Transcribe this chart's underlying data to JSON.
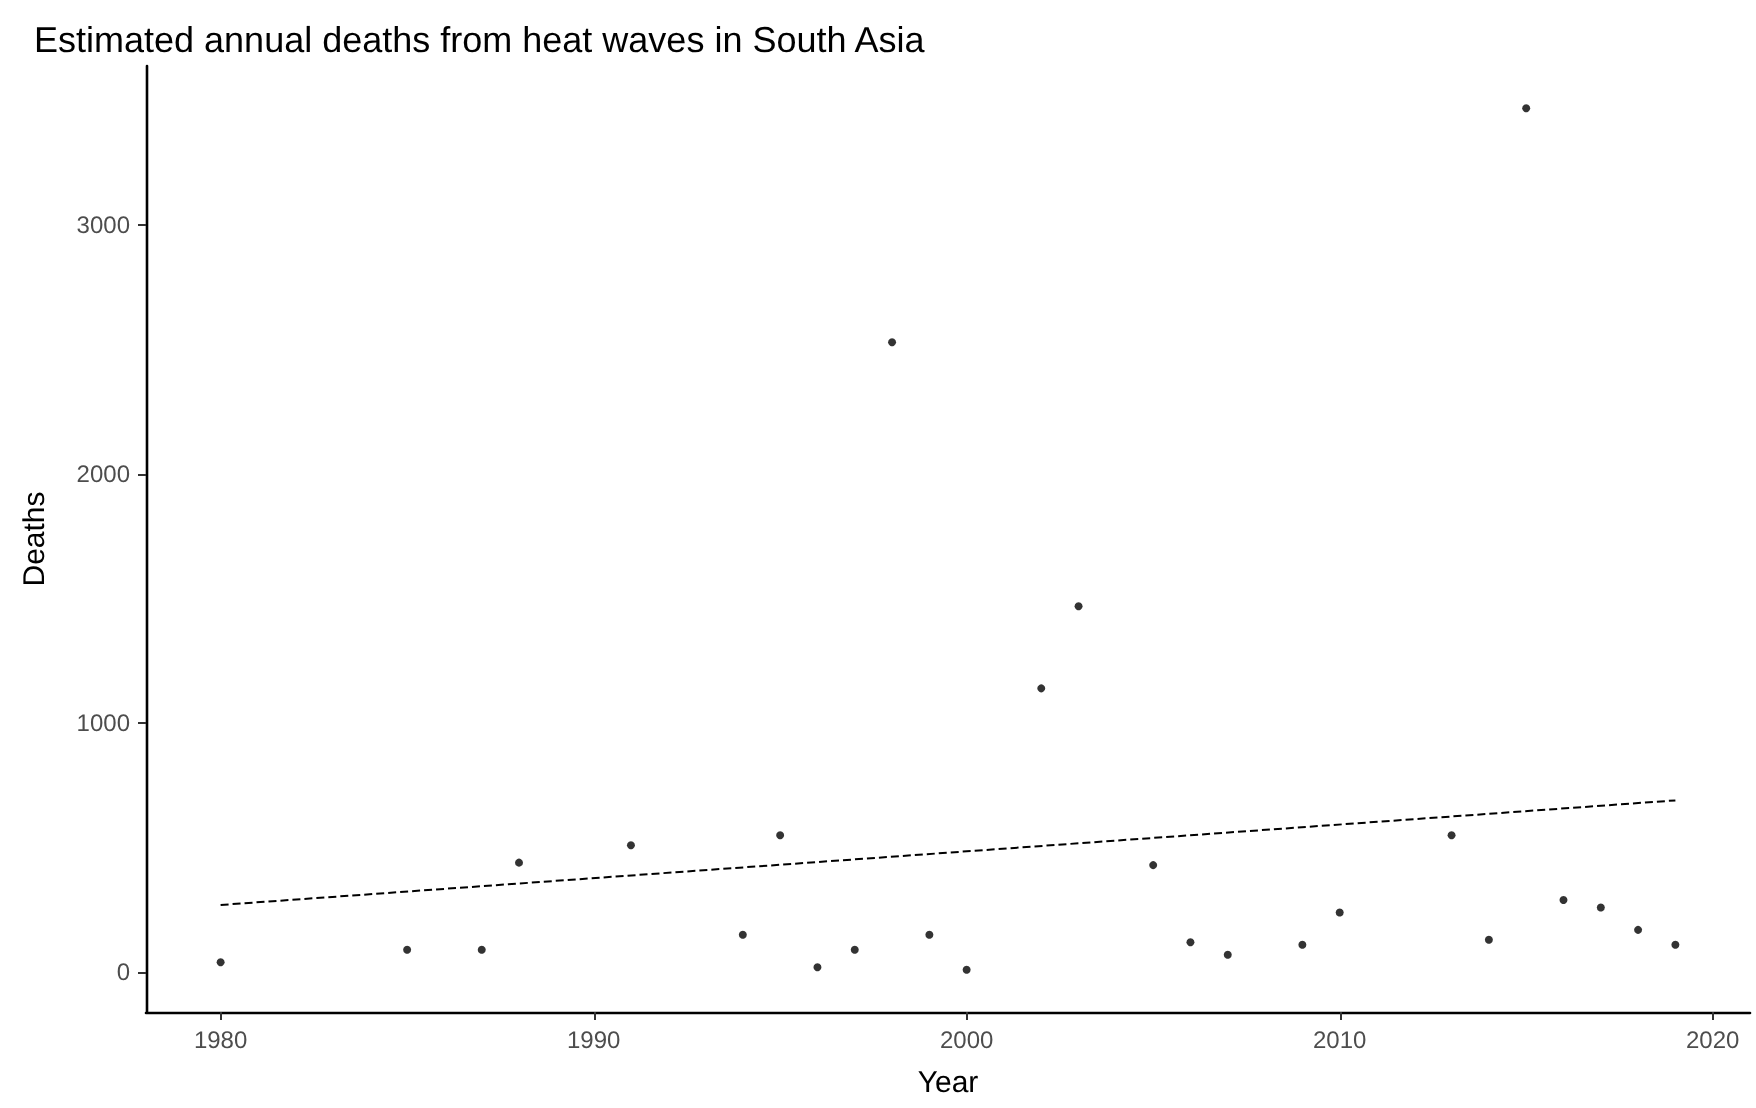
{
  "chart_data": {
    "type": "scatter",
    "title": "Estimated annual deaths from heat waves in South Asia",
    "xlabel": "Year",
    "ylabel": "Deaths",
    "series": [
      {
        "color": "#000000",
        "marker": "circle",
        "x": [
          1980,
          1985,
          1987,
          1988,
          1991,
          1994,
          1995,
          1996,
          1997,
          1998,
          1999,
          2000,
          2002,
          2003,
          2005,
          2006,
          2007,
          2009,
          2010,
          2013,
          2014,
          2015,
          2016,
          2017,
          2018,
          2019
        ],
        "values": [
          40,
          90,
          90,
          440,
          510,
          150,
          550,
          20,
          90,
          2530,
          150,
          10,
          1140,
          1470,
          430,
          120,
          70,
          110,
          240,
          550,
          130,
          3470,
          290,
          260,
          170,
          110
        ]
      },
      {
        "type": "line",
        "color": "#000000",
        "marker": "none",
        "line_style": "dashed",
        "x": [
          1980,
          2019
        ],
        "values": [
          270,
          690
        ]
      }
    ],
    "xlim": [
      1978,
      2021
    ],
    "xticks": [
      1980,
      1990,
      2000,
      2010,
      2020
    ],
    "ylim": [
      -160,
      3640
    ],
    "yticks": [
      0,
      1000,
      2000,
      3000
    ],
    "grid": false
  }
}
